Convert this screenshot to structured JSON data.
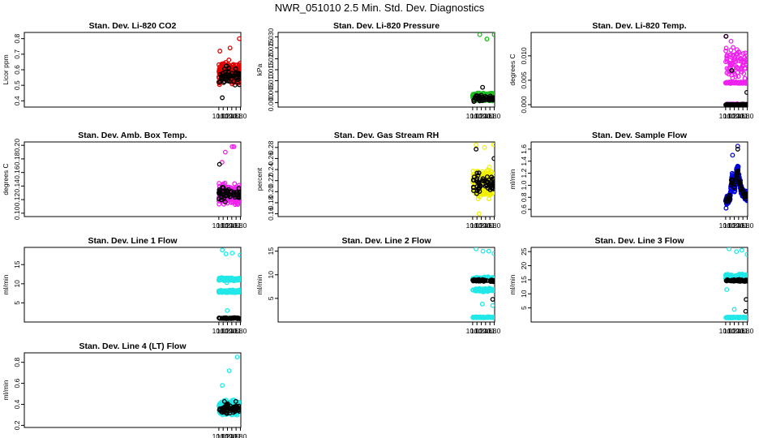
{
  "page_title": "NWR_051010  2.5 Min. Std. Dev. Diagnostics",
  "colors": {
    "black": "#000000",
    "red": "#e00000",
    "green": "#1fbf1f",
    "magenta": "#ee22ee",
    "yellow": "#f0f000",
    "blue": "#0000dd",
    "cyan": "#22e8e8"
  },
  "chart_data": [
    {
      "type": "scatter",
      "title": "Stan. Dev. Li-820 CO2",
      "ylabel": "Licor ppm",
      "xlim": [
        0.98,
        11.02
      ],
      "ylim": [
        0.36,
        0.84
      ],
      "xticks": [
        10.0,
        10.2,
        10.4,
        10.6,
        10.8,
        11.0
      ],
      "yticks": [
        0.4,
        0.5,
        0.6,
        0.7,
        0.8
      ],
      "ytick_labels": [
        "0.4",
        "0.5",
        "0.6",
        "0.7",
        "0.8"
      ],
      "series": [
        {
          "name": "main",
          "color": "red",
          "bands": [
            {
              "center": 0.58,
              "spread": 0.09
            }
          ],
          "outliers": [
            [
              10.05,
              0.72
            ],
            [
              10.52,
              0.74
            ],
            [
              10.95,
              0.8
            ]
          ]
        },
        {
          "name": "reference",
          "color": "black",
          "bands": [
            {
              "center": 0.56,
              "spread": 0.08
            }
          ],
          "outliers": [
            [
              10.16,
              0.42
            ]
          ]
        }
      ]
    },
    {
      "type": "scatter",
      "title": "Stan. Dev. Li-820 Pressure",
      "ylabel": "kPa",
      "xlim": [
        0.98,
        11.02
      ],
      "ylim": [
        -0.002,
        0.032
      ],
      "xticks": [
        10.0,
        10.2,
        10.4,
        10.6,
        10.8,
        11.0
      ],
      "yticks": [
        0.0,
        0.005,
        0.01,
        0.015,
        0.02,
        0.025,
        0.03
      ],
      "ytick_labels": [
        "0.000",
        "0.005",
        "0.010",
        "0.015",
        "0.020",
        "0.025",
        "0.030"
      ],
      "series": [
        {
          "name": "main",
          "color": "green",
          "bands": [
            {
              "center": 0.0025,
              "spread": 0.0025
            }
          ],
          "outliers": [
            [
              10.33,
              0.031
            ],
            [
              10.66,
              0.029
            ],
            [
              11.0,
              0.031
            ]
          ]
        },
        {
          "name": "reference",
          "color": "black",
          "bands": [
            {
              "center": 0.002,
              "spread": 0.002
            }
          ],
          "outliers": [
            [
              10.46,
              0.007
            ]
          ]
        }
      ]
    },
    {
      "type": "scatter",
      "title": "Stan. Dev. Li-820 Temp.",
      "ylabel": "degrees C",
      "xlim": [
        0.98,
        11.02
      ],
      "ylim": [
        -0.0005,
        0.0148
      ],
      "xticks": [
        10.0,
        10.2,
        10.4,
        10.6,
        10.8,
        11.0
      ],
      "yticks": [
        0.0,
        0.005,
        0.01
      ],
      "ytick_labels": [
        "0.000",
        "0.005",
        "0.010"
      ],
      "series": [
        {
          "name": "main",
          "color": "magenta",
          "bands": [
            {
              "center": 0.0,
              "spread": 0.0002
            },
            {
              "center": 0.0045,
              "spread": 0.0002
            },
            {
              "center": 0.0085,
              "spread": 0.0045
            }
          ],
          "outliers": [
            [
              10.01,
              0.014
            ],
            [
              10.25,
              0.013
            ],
            [
              10.64,
              0.0045
            ]
          ]
        },
        {
          "name": "reference",
          "color": "black",
          "bands": [
            {
              "center": 0.0,
              "spread": 0.0002
            }
          ],
          "outliers": [
            [
              10.02,
              0.014
            ],
            [
              10.28,
              0.007
            ],
            [
              10.98,
              0.0025
            ]
          ]
        }
      ]
    },
    {
      "type": "scatter",
      "title": "Stan. Dev. Amb. Box Temp.",
      "ylabel": "degrees C",
      "xlim": [
        0.98,
        11.02
      ],
      "ylim": [
        0.095,
        0.205
      ],
      "xticks": [
        10.0,
        10.2,
        10.4,
        10.6,
        10.8,
        11.0
      ],
      "yticks": [
        0.1,
        0.12,
        0.14,
        0.16,
        0.18,
        0.2
      ],
      "ytick_labels": [
        "0.10",
        "0.12",
        "0.14",
        "0.16",
        "0.18",
        "0.20"
      ],
      "series": [
        {
          "name": "main",
          "color": "magenta",
          "bands": [
            {
              "center": 0.128,
              "spread": 0.02
            }
          ],
          "outliers": [
            [
              10.3,
              0.19
            ],
            [
              10.62,
              0.198
            ],
            [
              10.7,
              0.198
            ],
            [
              10.15,
              0.175
            ]
          ]
        },
        {
          "name": "reference",
          "color": "black",
          "bands": [
            {
              "center": 0.128,
              "spread": 0.015
            }
          ],
          "outliers": [
            [
              10.03,
              0.172
            ]
          ]
        }
      ]
    },
    {
      "type": "scatter",
      "title": "Stan. Dev. Gas Stream RH",
      "ylabel": "percent",
      "xlim": [
        0.98,
        11.02
      ],
      "ylim": [
        0.155,
        0.29
      ],
      "xticks": [
        10.0,
        10.2,
        10.4,
        10.6,
        10.8,
        11.0
      ],
      "yticks": [
        0.16,
        0.18,
        0.2,
        0.22,
        0.24,
        0.26,
        0.28
      ],
      "ytick_labels": [
        "0.16",
        "0.18",
        "0.20",
        "0.22",
        "0.24",
        "0.26",
        "0.28"
      ],
      "series": [
        {
          "name": "main",
          "color": "yellow",
          "bands": [
            {
              "center": 0.215,
              "spread": 0.035
            }
          ],
          "outliers": [
            [
              10.16,
              0.285
            ],
            [
              10.55,
              0.28
            ],
            [
              10.97,
              0.285
            ],
            [
              10.3,
              0.16
            ]
          ]
        },
        {
          "name": "reference",
          "color": "black",
          "bands": [
            {
              "center": 0.215,
              "spread": 0.025
            }
          ],
          "outliers": [
            [
              10.16,
              0.277
            ],
            [
              10.99,
              0.26
            ]
          ]
        }
      ]
    },
    {
      "type": "scatter",
      "title": "Stan. Dev. Sample Flow",
      "ylabel": "ml/min",
      "xlim": [
        0.98,
        11.02
      ],
      "ylim": [
        0.48,
        1.72
      ],
      "xticks": [
        10.0,
        10.2,
        10.4,
        10.6,
        10.8,
        11.0
      ],
      "yticks": [
        0.6,
        0.8,
        1.0,
        1.2,
        1.4,
        1.6
      ],
      "ytick_labels": [
        "0.6",
        "0.8",
        "1.0",
        "1.2",
        "1.4",
        "1.6"
      ],
      "series": [
        {
          "name": "main",
          "color": "blue",
          "curve": [
            [
              10.0,
              0.72
            ],
            [
              10.2,
              0.8
            ],
            [
              10.3,
              1.15
            ],
            [
              10.42,
              0.95
            ],
            [
              10.55,
              1.3
            ],
            [
              10.7,
              0.95
            ],
            [
              11.0,
              0.78
            ]
          ],
          "spread": 0.12,
          "outliers": [
            [
              10.32,
              1.5
            ],
            [
              10.56,
              1.65
            ]
          ]
        },
        {
          "name": "reference",
          "color": "black",
          "curve": [
            [
              10.0,
              0.72
            ],
            [
              10.2,
              0.8
            ],
            [
              10.3,
              1.1
            ],
            [
              10.42,
              0.95
            ],
            [
              10.55,
              1.25
            ],
            [
              10.7,
              0.95
            ],
            [
              11.0,
              0.78
            ]
          ],
          "spread": 0.08,
          "outliers": [
            [
              10.56,
              1.6
            ]
          ]
        }
      ]
    },
    {
      "type": "scatter",
      "title": "Stan. Dev. Line 1 Flow",
      "ylabel": "ml/min",
      "xlim": [
        0.98,
        11.02
      ],
      "ylim": [
        0.0,
        19.5
      ],
      "xticks": [
        10.0,
        10.2,
        10.4,
        10.6,
        10.8,
        11.0
      ],
      "yticks": [
        5,
        10,
        15
      ],
      "ytick_labels": [
        "5",
        "10",
        "15"
      ],
      "series": [
        {
          "name": "main",
          "color": "cyan",
          "bands": [
            {
              "center": 11.2,
              "spread": 0.5
            },
            {
              "center": 8.0,
              "spread": 0.5
            }
          ],
          "outliers": [
            [
              10.16,
              18.8
            ],
            [
              10.33,
              17.8
            ],
            [
              10.37,
              10.3
            ],
            [
              10.39,
              3.0
            ],
            [
              10.62,
              18.0
            ],
            [
              10.99,
              17.5
            ]
          ]
        },
        {
          "name": "reference",
          "color": "black",
          "bands": [
            {
              "center": 1.0,
              "spread": 0.2
            }
          ],
          "outliers": []
        }
      ]
    },
    {
      "type": "scatter",
      "title": "Stan. Dev. Line 2 Flow",
      "ylabel": "ml/min",
      "xlim": [
        0.98,
        11.02
      ],
      "ylim": [
        0.0,
        15.8
      ],
      "xticks": [
        10.0,
        10.2,
        10.4,
        10.6,
        10.8,
        11.0
      ],
      "yticks": [
        5,
        10,
        15
      ],
      "ytick_labels": [
        "5",
        "10",
        "15"
      ],
      "series": [
        {
          "name": "main",
          "color": "cyan",
          "bands": [
            {
              "center": 9.2,
              "spread": 0.5
            },
            {
              "center": 6.8,
              "spread": 0.5
            },
            {
              "center": 1.0,
              "spread": 0.15
            }
          ],
          "outliers": [
            [
              10.16,
              15.5
            ],
            [
              10.45,
              3.8
            ],
            [
              10.48,
              15.0
            ],
            [
              10.75,
              15.0
            ],
            [
              10.93,
              3.5
            ],
            [
              10.99,
              14.5
            ]
          ]
        },
        {
          "name": "reference",
          "color": "black",
          "bands": [
            {
              "center": 8.8,
              "spread": 0.3
            }
          ],
          "outliers": [
            [
              10.93,
              4.8
            ]
          ]
        }
      ]
    },
    {
      "type": "scatter",
      "title": "Stan. Dev. Line 3 Flow",
      "ylabel": "ml/min",
      "xlim": [
        0.98,
        11.02
      ],
      "ylim": [
        0.0,
        26.5
      ],
      "xticks": [
        10.0,
        10.2,
        10.4,
        10.6,
        10.8,
        11.0
      ],
      "yticks": [
        5,
        10,
        15,
        20,
        25
      ],
      "ytick_labels": [
        "5",
        "10",
        "15",
        "20",
        "25"
      ],
      "series": [
        {
          "name": "main",
          "color": "cyan",
          "bands": [
            {
              "center": 16.2,
              "spread": 1.2
            },
            {
              "center": 1.6,
              "spread": 0.2
            }
          ],
          "outliers": [
            [
              10.16,
              26.0
            ],
            [
              10.4,
              4.5
            ],
            [
              10.5,
              25.0
            ],
            [
              10.75,
              25.5
            ],
            [
              10.99,
              24.0
            ],
            [
              10.05,
              11.5
            ]
          ]
        },
        {
          "name": "reference",
          "color": "black",
          "bands": [
            {
              "center": 14.8,
              "spread": 0.6
            }
          ],
          "outliers": [
            [
              10.93,
              3.8
            ],
            [
              10.95,
              8.0
            ]
          ]
        }
      ]
    },
    {
      "type": "scatter",
      "title": "Stan. Dev. Line 4 (LT) Flow",
      "ylabel": "ml/min",
      "xlim": [
        0.98,
        11.02
      ],
      "ylim": [
        0.18,
        0.89
      ],
      "xticks": [
        10.0,
        10.2,
        10.4,
        10.6,
        10.8,
        11.0
      ],
      "yticks": [
        0.2,
        0.4,
        0.6,
        0.8
      ],
      "ytick_labels": [
        "0.2",
        "0.4",
        "0.6",
        "0.8"
      ],
      "series": [
        {
          "name": "main",
          "color": "cyan",
          "bands": [
            {
              "center": 0.37,
              "spread": 0.1
            }
          ],
          "outliers": [
            [
              10.16,
              0.58
            ],
            [
              10.48,
              0.72
            ],
            [
              10.85,
              0.85
            ]
          ]
        },
        {
          "name": "reference",
          "color": "black",
          "bands": [
            {
              "center": 0.36,
              "spread": 0.07
            }
          ],
          "outliers": []
        }
      ]
    }
  ]
}
